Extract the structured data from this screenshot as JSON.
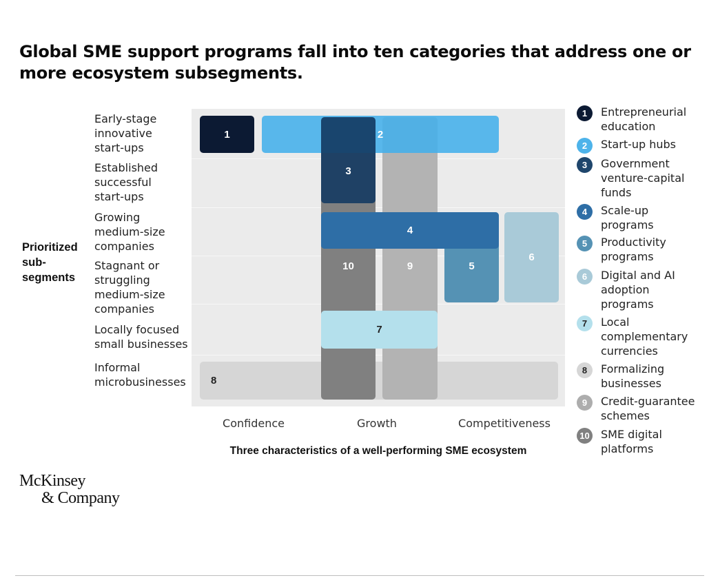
{
  "title": "Global SME support programs fall into ten categories that address one or more ecosystem subsegments.",
  "y_axis_title": "Prioritized sub-segments",
  "rows": [
    "Early-stage innovative start-ups",
    "Established successful start-ups",
    "Growing medium-size companies",
    "Stagnant or struggling medium-size companies",
    "Locally focused small businesses",
    "Informal microbusinesses"
  ],
  "columns": [
    "Confidence",
    "Growth",
    "Competitiveness"
  ],
  "x_axis_title": "Three characteristics of a well-performing SME ecosystem",
  "programs": [
    {
      "n": "1",
      "label": "Entrepreneurial education",
      "color": "#0c1a33"
    },
    {
      "n": "2",
      "label": "Start-up hubs",
      "color": "#4db3ea"
    },
    {
      "n": "3",
      "label": "Government venture-capital funds",
      "color": "#1f466c"
    },
    {
      "n": "4",
      "label": "Scale-up programs",
      "color": "#2e6ea6"
    },
    {
      "n": "5",
      "label": "Productivity programs",
      "color": "#5592b4"
    },
    {
      "n": "6",
      "label": "Digital and AI adoption programs",
      "color": "#a9cad8"
    },
    {
      "n": "7",
      "label": "Local complementary currencies",
      "color": "#b4e0ec"
    },
    {
      "n": "8",
      "label": "Formalizing businesses",
      "color": "#d6d6d6"
    },
    {
      "n": "9",
      "label": "Credit-guarantee schemes",
      "color": "#adadad"
    },
    {
      "n": "10",
      "label": "SME digital platforms",
      "color": "#808080"
    }
  ],
  "logo": {
    "line1": "McKinsey",
    "line2": "& Company"
  }
}
